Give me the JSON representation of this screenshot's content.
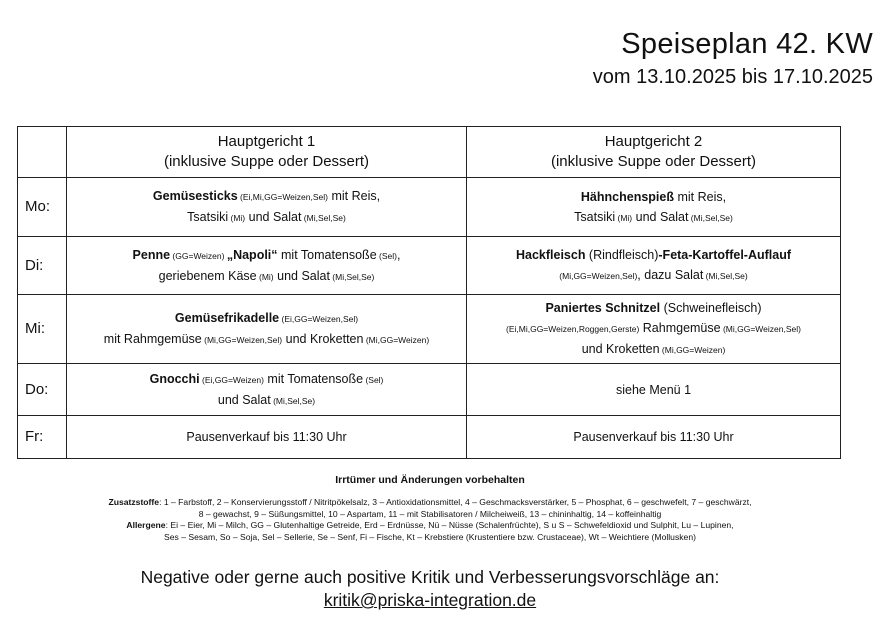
{
  "header": {
    "title": "Speiseplan 42. KW",
    "subtitle": "vom 13.10.2025 bis 17.10.2025"
  },
  "table": {
    "columns": [
      {
        "line1": "Hauptgericht 1",
        "line2": "(inklusive Suppe oder Dessert)"
      },
      {
        "line1": "Hauptgericht 2",
        "line2": "(inklusive Suppe oder Dessert)"
      }
    ],
    "rows": [
      {
        "day": "Mo:",
        "cells": [
          [
            [
              {
                "t": "Gemüsesticks",
                "b": true
              },
              {
                "t": " (Ei,Mi,GG=Weizen,Sel)",
                "s": true
              },
              {
                "t": " mit Reis,"
              }
            ],
            [
              {
                "t": "Tsatsiki"
              },
              {
                "t": " (Mi)",
                "s": true
              },
              {
                "t": " und Salat"
              },
              {
                "t": " (Mi,Sel,Se)",
                "s": true
              }
            ]
          ],
          [
            [
              {
                "t": "Hähnchenspieß",
                "b": true
              },
              {
                "t": " mit Reis,"
              }
            ],
            [
              {
                "t": "Tsatsiki"
              },
              {
                "t": " (Mi)",
                "s": true
              },
              {
                "t": " und Salat"
              },
              {
                "t": " (Mi,Sel,Se)",
                "s": true
              }
            ]
          ]
        ]
      },
      {
        "day": "Di:",
        "cells": [
          [
            [
              {
                "t": "Penne",
                "b": true
              },
              {
                "t": " (GG=Weizen) ",
                "s": true
              },
              {
                "t": "„Napoli“",
                "b": true
              },
              {
                "t": " mit Tomatensoße"
              },
              {
                "t": " (Sel)",
                "s": true
              },
              {
                "t": ","
              }
            ],
            [
              {
                "t": "geriebenem Käse"
              },
              {
                "t": " (Mi)",
                "s": true
              },
              {
                "t": " und Salat"
              },
              {
                "t": " (Mi,Sel,Se)",
                "s": true
              }
            ]
          ],
          [
            [
              {
                "t": "Hackfleisch",
                "b": true
              },
              {
                "t": " (Rindfleisch)"
              },
              {
                "t": "-Feta-Kartoffel-Auflauf",
                "b": true
              }
            ],
            [
              {
                "t": "(Mi,GG=Weizen,Sel)",
                "s": true
              },
              {
                "t": ", dazu Salat"
              },
              {
                "t": " (Mi,Sel,Se)",
                "s": true
              }
            ]
          ]
        ]
      },
      {
        "day": "Mi:",
        "cells": [
          [
            [
              {
                "t": "Gemüsefrikadelle",
                "b": true
              },
              {
                "t": " (Ei,GG=Weizen,Sel)",
                "s": true
              }
            ],
            [
              {
                "t": "mit Rahmgemüse"
              },
              {
                "t": " (Mi,GG=Weizen,Sel)",
                "s": true
              },
              {
                "t": " und Kroketten"
              },
              {
                "t": " (Mi,GG=Weizen)",
                "s": true
              }
            ]
          ],
          [
            [
              {
                "t": "Paniertes Schnitzel",
                "b": true
              },
              {
                "t": " (Schweinefleisch)"
              }
            ],
            [
              {
                "t": "(Ei,Mi,GG=Weizen,Roggen,Gerste)",
                "s": true
              },
              {
                "t": " Rahmgemüse"
              },
              {
                "t": " (Mi,GG=Weizen,Sel)",
                "s": true
              }
            ],
            [
              {
                "t": "und Kroketten"
              },
              {
                "t": " (Mi,GG=Weizen)",
                "s": true
              }
            ]
          ]
        ]
      },
      {
        "day": "Do:",
        "cells": [
          [
            [
              {
                "t": "Gnocchi",
                "b": true
              },
              {
                "t": " (Ei,GG=Weizen)",
                "s": true
              },
              {
                "t": " mit Tomatensoße"
              },
              {
                "t": " (Sel)",
                "s": true
              }
            ],
            [
              {
                "t": "und Salat"
              },
              {
                "t": " (Mi,Sel,Se)",
                "s": true
              }
            ]
          ],
          [
            [
              {
                "t": "siehe Menü 1"
              }
            ]
          ]
        ]
      },
      {
        "day": "Fr:",
        "cells": [
          [
            [
              {
                "t": "Pausenverkauf bis 11:30 Uhr"
              }
            ]
          ],
          [
            [
              {
                "t": "Pausenverkauf bis 11:30 Uhr"
              }
            ]
          ]
        ]
      }
    ]
  },
  "footer": {
    "disclaimer": "Irrtümer und Änderungen vorbehalten",
    "zusatzstoffe_label": "Zusatzstoffe",
    "zusatzstoffe_line1": ": 1 – Farbstoff, 2 – Konservierungsstoff / Nitritpökelsalz, 3 – Antioxidationsmittel, 4 – Geschmacksverstärker, 5 – Phosphat, 6 – geschwefelt, 7 – geschwärzt,",
    "zusatzstoffe_line2": "8 – gewachst, 9 – Süßungsmittel, 10 – Aspartam, 11 – mit Stabilisatoren / Milcheiweiß, 13 – chininhaltig, 14 – koffeinhaltig",
    "allergene_label": "Allergene",
    "allergene_line1": ": Ei – Eier, Mi – Milch, GG – Glutenhaltige Getreide, Erd – Erdnüsse, Nü – Nüsse (Schalenfrüchte), S u S – Schwefeldioxid und Sulphit, Lu – Lupinen,",
    "allergene_line2": "Ses – Sesam, So – Soja, Sel – Sellerie, Se – Senf, Fi – Fische, Kt – Krebstiere (Krustentiere bzw. Crustaceae), Wt – Weichtiere (Mollusken)",
    "kritik_text": "Negative oder gerne auch positive Kritik und Verbesserungsvorschläge an:",
    "kritik_email": "kritik@priska-integration.de"
  }
}
